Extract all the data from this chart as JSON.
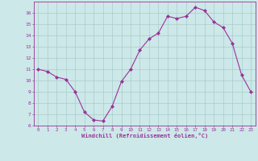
{
  "x": [
    0,
    1,
    2,
    3,
    4,
    5,
    6,
    7,
    8,
    9,
    10,
    11,
    12,
    13,
    14,
    15,
    16,
    17,
    18,
    19,
    20,
    21,
    22,
    23
  ],
  "y": [
    11.0,
    10.8,
    10.3,
    10.1,
    9.0,
    7.2,
    6.5,
    6.4,
    7.7,
    9.9,
    11.0,
    12.7,
    13.7,
    14.2,
    15.7,
    15.5,
    15.7,
    16.5,
    16.2,
    15.2,
    14.7,
    13.3,
    10.5,
    9.0
  ],
  "line_color": "#993399",
  "marker_color": "#993399",
  "bg_color": "#cce8e8",
  "grid_color": "#aacccc",
  "xlabel": "Windchill (Refroidissement éolien,°C)",
  "xlabel_color": "#993399",
  "tick_color": "#993399",
  "ylim": [
    6,
    17
  ],
  "xlim": [
    -0.5,
    23.5
  ],
  "yticks": [
    6,
    7,
    8,
    9,
    10,
    11,
    12,
    13,
    14,
    15,
    16
  ],
  "xticks": [
    0,
    1,
    2,
    3,
    4,
    5,
    6,
    7,
    8,
    9,
    10,
    11,
    12,
    13,
    14,
    15,
    16,
    17,
    18,
    19,
    20,
    21,
    22,
    23
  ],
  "figsize": [
    3.2,
    2.0
  ],
  "dpi": 100
}
